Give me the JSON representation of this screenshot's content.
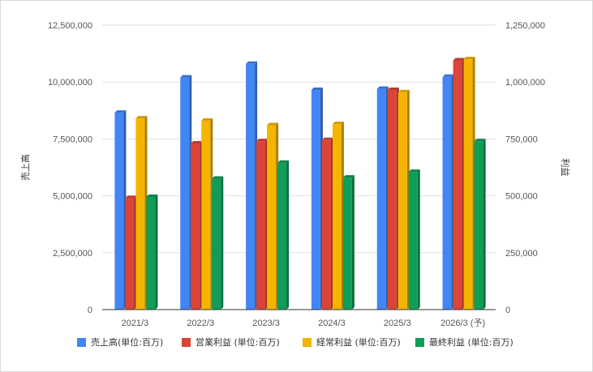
{
  "chart_data": {
    "type": "bar",
    "categories": [
      "2021/3",
      "2022/3",
      "2023/3",
      "2024/3",
      "2025/3",
      "2026/3 (予)"
    ],
    "series": [
      {
        "name": "売上高(単位:百万)",
        "axis": "left",
        "color": "#4285f4",
        "values": [
          8650000,
          10200000,
          10800000,
          9650000,
          9700000,
          10230000
        ]
      },
      {
        "name": "営業利益 (単位:百万)",
        "axis": "right",
        "color": "#db4437",
        "values": [
          490000,
          730000,
          740000,
          745000,
          965000,
          1095000
        ]
      },
      {
        "name": "経常利益 (単位:百万)",
        "axis": "right",
        "color": "#f4b400",
        "values": [
          840000,
          830000,
          810000,
          815000,
          955000,
          1100000
        ]
      },
      {
        "name": "最終利益 (単位:百万)",
        "axis": "right",
        "color": "#0f9d58",
        "values": [
          495000,
          575000,
          645000,
          580000,
          605000,
          740000
        ]
      }
    ],
    "y_left": {
      "label": "売上高",
      "range": [
        0,
        12500000
      ],
      "ticks": [
        "0",
        "2,500,000",
        "5,000,000",
        "7,500,000",
        "10,000,000",
        "12,500,000"
      ]
    },
    "y_right": {
      "label": "利益",
      "range": [
        0,
        1250000
      ],
      "ticks": [
        "0",
        "250,000",
        "500,000",
        "750,000",
        "1,000,000",
        "1,250,000"
      ]
    },
    "grid": true,
    "legend_position": "bottom"
  }
}
